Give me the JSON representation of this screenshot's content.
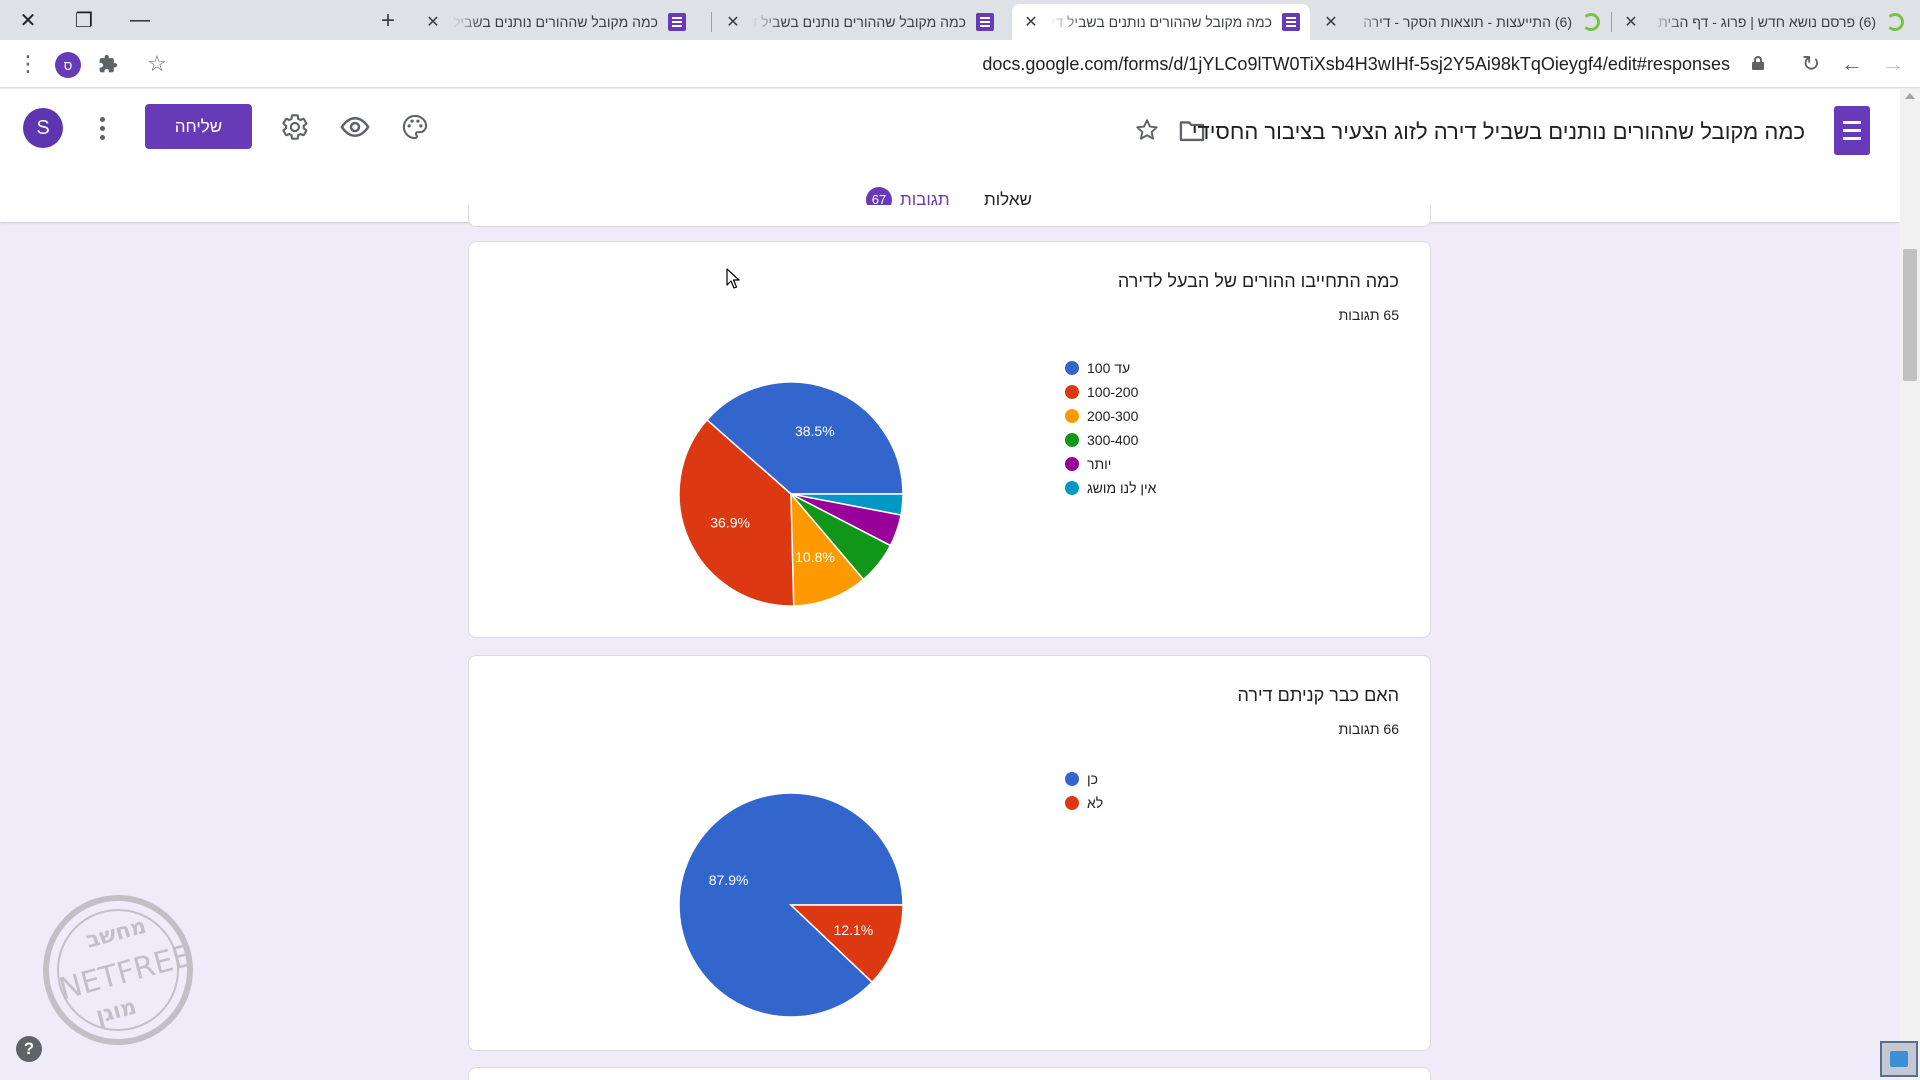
{
  "browser": {
    "tabs": [
      {
        "title": "(6) פרסם נושא חדש | פרוג - דף הבית",
        "icon": "prog-favicon-icon",
        "active": false
      },
      {
        "title": "(6) התייעצות - תוצאות הסקר - דירה",
        "icon": "prog-favicon-icon",
        "active": false
      },
      {
        "title": "כמה מקובל שההורים נותנים בשביל דירה",
        "icon": "forms-favicon-icon",
        "active": true
      },
      {
        "title": "כמה מקובל שההורים נותנים בשביל דירה",
        "icon": "forms-favicon-icon",
        "active": false
      },
      {
        "title": "כמה מקובל שההורים נותנים בשביל דירה",
        "icon": "forms-favicon-icon",
        "active": false
      }
    ],
    "new_tab_symbol": "+",
    "url": "docs.google.com/forms/d/1jYLCo9lTW0TiXsb4H3wIHf-5sj2Y5Ai98kTqOieygf4/edit#responses",
    "profile_initial": "ס"
  },
  "header": {
    "title": "כמה מקובל שההורים נותנים בשביל דירה לזוג הצעיר בציבור החסידי",
    "send_label": "שליחה",
    "avatar_initial": "S",
    "tabs": {
      "questions": "שאלות",
      "responses": "תגובות",
      "responses_count": "67"
    }
  },
  "colors": {
    "brand": "#673ab7",
    "background": "#f0ebf8",
    "series": [
      "#3366cc",
      "#dc3912",
      "#ff9900",
      "#109618",
      "#990099",
      "#0099c6"
    ]
  },
  "questions": [
    {
      "title": "כמה התחייבו ההורים של הבעל לדירה",
      "count_text": "65 תגובות"
    },
    {
      "title": "האם כבר קניתם דירה",
      "count_text": "66 תגובות"
    }
  ],
  "chart_data": [
    {
      "type": "pie",
      "title": "כמה התחייבו ההורים של הבעל לדירה",
      "categories": [
        "עד 100",
        "100-200",
        "200-300",
        "300-400",
        "יותר",
        "אין לנו מושג"
      ],
      "values": [
        38.5,
        36.9,
        10.8,
        6.2,
        4.6,
        3.0
      ],
      "data_labels": [
        "38.5%",
        "36.9%",
        "10.8%",
        "",
        "",
        ""
      ],
      "colors": [
        "#3366cc",
        "#dc3912",
        "#ff9900",
        "#109618",
        "#990099",
        "#0099c6"
      ],
      "legend": "right"
    },
    {
      "type": "pie",
      "title": "האם כבר קניתם דירה",
      "categories": [
        "כן",
        "לא"
      ],
      "values": [
        87.9,
        12.1
      ],
      "data_labels": [
        "87.9%",
        "12.1%"
      ],
      "colors": [
        "#3366cc",
        "#dc3912"
      ],
      "legend": "right"
    }
  ],
  "watermark": {
    "text_top": "מחשב",
    "text_mid": "NETFREE",
    "text_bottom": "מוגן"
  },
  "help_symbol": "?"
}
